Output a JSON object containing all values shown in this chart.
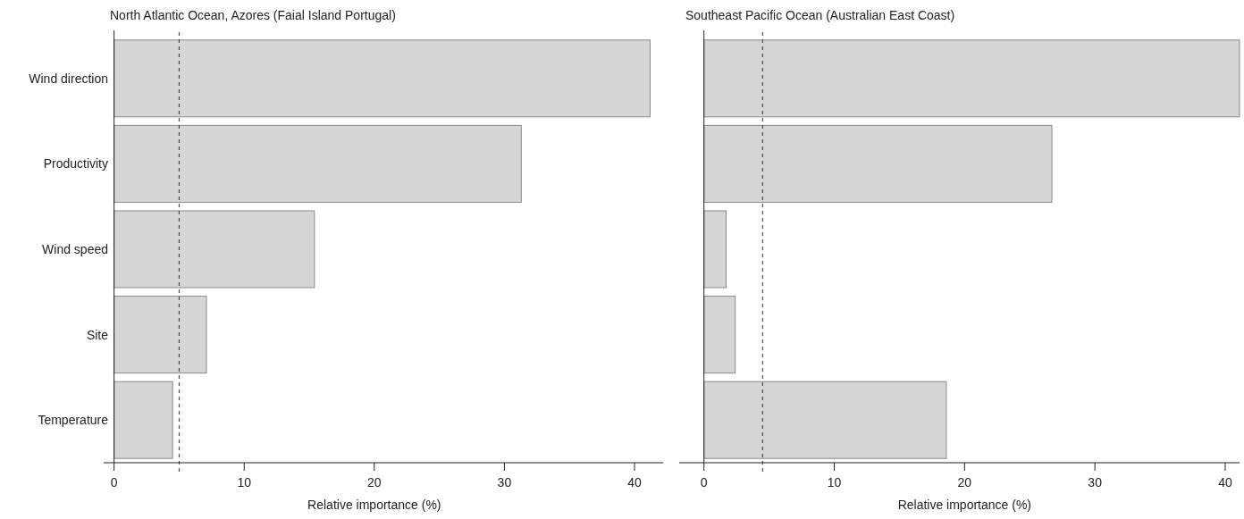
{
  "chart_data": [
    {
      "type": "bar",
      "orientation": "horizontal",
      "title": "North Atlantic Ocean, Azores (Faial Island Portugal)",
      "xlabel": "Relative importance (%)",
      "categories": [
        "Wind direction",
        "Productivity",
        "Wind speed",
        "Site",
        "Temperature"
      ],
      "values": [
        41.2,
        31.3,
        15.4,
        7.1,
        4.5
      ],
      "color": "#d6d6d6",
      "xlim": [
        -0.8,
        42.2
      ],
      "xticks": [
        0,
        10,
        20,
        30,
        40
      ],
      "ref_lines": [
        {
          "axis": "x",
          "value": 5.0,
          "color": "#333333",
          "line_style": "dashed"
        }
      ]
    },
    {
      "type": "bar",
      "orientation": "horizontal",
      "title": "Southeast Pacific Ocean (Australian East Coast)",
      "xlabel": "Relative importance (%)",
      "categories": [
        null,
        null,
        null,
        null,
        null
      ],
      "values": [
        41.1,
        26.7,
        1.7,
        2.4,
        18.6
      ],
      "color": "#d6d6d6",
      "xlim": [
        -1.9,
        41.1
      ],
      "xticks": [
        0,
        10,
        20,
        30,
        40
      ],
      "ref_lines": [
        {
          "axis": "x",
          "value": 4.5,
          "color": "#333333",
          "line_style": "dashed"
        }
      ],
      "tick_labels": "x"
    }
  ]
}
